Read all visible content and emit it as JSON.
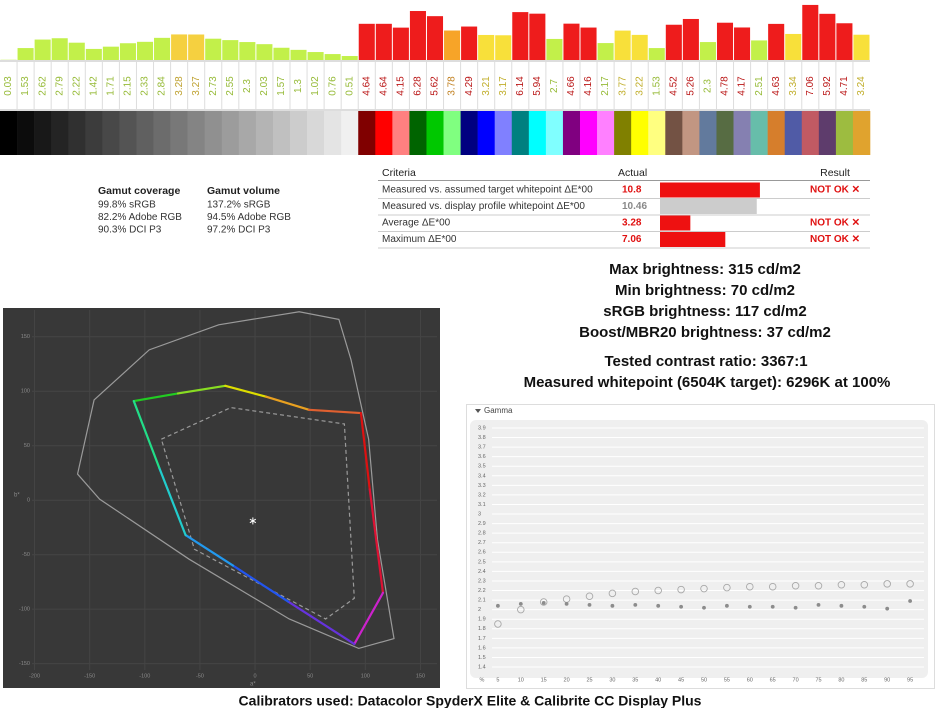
{
  "chart_data": [
    {
      "type": "bar",
      "values": [
        0.03,
        1.53,
        2.62,
        2.79,
        2.22,
        1.42,
        1.71,
        2.15,
        2.33,
        2.84,
        3.28,
        3.27,
        2.73,
        2.55,
        2.3,
        2.03,
        1.57,
        1.3,
        1.02,
        0.76,
        0.51,
        4.64,
        4.64,
        4.15,
        6.28,
        5.62,
        3.78,
        4.29,
        3.21,
        3.17,
        6.14,
        5.94,
        2.7,
        4.66,
        4.16,
        2.17,
        3.77,
        3.22,
        1.53,
        4.52,
        5.26,
        2.3,
        4.78,
        4.17,
        2.51,
        4.63,
        3.34,
        7.06,
        5.92,
        4.71,
        3.24
      ],
      "colors": [
        "#c2f04a",
        "#c2f04a",
        "#c2f04a",
        "#c2f04a",
        "#c2f04a",
        "#c2f04a",
        "#c2f04a",
        "#c2f04a",
        "#c2f04a",
        "#c2f04a",
        "#f5d040",
        "#f5d040",
        "#c2f04a",
        "#c2f04a",
        "#c2f04a",
        "#c2f04a",
        "#c2f04a",
        "#c2f04a",
        "#c2f04a",
        "#c2f04a",
        "#c2f04a",
        "#ee1c1c",
        "#ee1c1c",
        "#ee1c1c",
        "#ee1c1c",
        "#ee1c1c",
        "#f7a428",
        "#ee1c1c",
        "#f8e03a",
        "#f8e03a",
        "#ee1c1c",
        "#ee1c1c",
        "#c2f04a",
        "#ee1c1c",
        "#ee1c1c",
        "#c2f04a",
        "#f8e03a",
        "#f8e03a",
        "#c2f04a",
        "#ee1c1c",
        "#ee1c1c",
        "#c2f04a",
        "#ee1c1c",
        "#ee1c1c",
        "#c2f04a",
        "#ee1c1c",
        "#f8e03a",
        "#ee1c1c",
        "#ee1c1c",
        "#ee1c1c",
        "#f8e03a"
      ],
      "patch_colors": [
        "#000000",
        "#0c0c0c",
        "#181818",
        "#242424",
        "#303030",
        "#3c3c3c",
        "#484848",
        "#545454",
        "#606060",
        "#6c6c6c",
        "#787878",
        "#848484",
        "#909090",
        "#9c9c9c",
        "#a8a8a8",
        "#b4b4b4",
        "#c0c0c0",
        "#cccccc",
        "#d8d8d8",
        "#e4e4e4",
        "#f0f0f0",
        "#800000",
        "#ff0000",
        "#ff8080",
        "#006400",
        "#00c800",
        "#80ff80",
        "#000080",
        "#0000ff",
        "#8080ff",
        "#008080",
        "#00ffff",
        "#80ffff",
        "#800080",
        "#ff00ff",
        "#ff80ff",
        "#808000",
        "#ffff00",
        "#ffff80",
        "#735244",
        "#c29682",
        "#627a9d",
        "#576c43",
        "#8580b1",
        "#67bdaa",
        "#d67e2c",
        "#505ba6",
        "#c15a63",
        "#5e3c6c",
        "#9dbc40",
        "#e0a32e"
      ]
    },
    {
      "type": "gamut",
      "xlabel": "a*",
      "ylabel": "b*",
      "xlim": [
        -215,
        165
      ],
      "ylim": [
        -165,
        170
      ],
      "xticks": [
        -200,
        -150,
        -100,
        -50,
        0,
        50,
        100,
        150
      ],
      "yticks": [
        150,
        100,
        50,
        0,
        -50,
        -100,
        -150
      ],
      "grid": true,
      "series": [
        {
          "color": "#9a9a9a",
          "x": [
            -161,
            -146,
            -96,
            -33,
            40,
            76,
            87,
            103,
            111,
            123,
            126,
            94,
            31,
            -60,
            -141
          ],
          "values": [
            24,
            92,
            138,
            161,
            173,
            166,
            129,
            56,
            -36,
            -109,
            -127,
            -136,
            -109,
            -54,
            1
          ]
        },
        {
          "color": "#9a9a9a",
          "dashed": true,
          "x": [
            -85,
            -22,
            81,
            90,
            64,
            -55
          ],
          "values": [
            56,
            85,
            70,
            -90,
            -109,
            -45
          ]
        },
        {
          "colors": [
            "#22cc22",
            "#88dd22",
            "#dddd00",
            "#e8a020",
            "#e06030",
            "#dd1111",
            "#dd1133",
            "#cc22cc",
            "#6633dd",
            "#2255ee",
            "#2299ee",
            "#22cccc",
            "#22dd88"
          ],
          "x": [
            -110,
            -70,
            -27,
            10,
            49,
            96,
            104,
            116,
            90,
            30,
            -20,
            -63,
            -87
          ],
          "values": [
            91,
            98,
            105,
            95,
            83,
            80,
            10,
            -85,
            -132,
            -93,
            -60,
            -32,
            30
          ]
        }
      ],
      "white_point": {
        "x": -2,
        "value": -19,
        "color": "#ffffff"
      }
    },
    {
      "type": "scatter",
      "title": "Gamma",
      "xlabel": "%",
      "x": [
        5,
        10,
        15,
        20,
        25,
        30,
        35,
        40,
        45,
        50,
        55,
        60,
        65,
        70,
        75,
        80,
        85,
        90,
        95
      ],
      "xlim": [
        0,
        100
      ],
      "ylim": [
        1.4,
        3.9
      ],
      "xticks": [
        5,
        10,
        15,
        20,
        25,
        30,
        35,
        40,
        45,
        50,
        55,
        60,
        65,
        70,
        75,
        80,
        85,
        90,
        95
      ],
      "yticks": [
        1.4,
        1.5,
        1.6,
        1.7,
        1.8,
        1.9,
        2,
        2.1,
        2.2,
        2.3,
        2.4,
        2.5,
        2.6,
        2.7,
        2.8,
        2.9,
        3,
        3.1,
        3.2,
        3.3,
        3.4,
        3.5,
        3.6,
        3.7,
        3.8,
        3.9
      ],
      "grid": true,
      "series": [
        {
          "color": "#a8a8a8",
          "marker": "ring",
          "values": [
            1.85,
            2.0,
            2.08,
            2.11,
            2.14,
            2.17,
            2.19,
            2.2,
            2.21,
            2.22,
            2.23,
            2.24,
            2.24,
            2.25,
            2.25,
            2.26,
            2.26,
            2.27,
            2.27
          ]
        },
        {
          "color": "#8c8c8c",
          "marker": "dot",
          "values": [
            2.04,
            2.06,
            2.07,
            2.06,
            2.05,
            2.04,
            2.05,
            2.04,
            2.03,
            2.02,
            2.04,
            2.03,
            2.03,
            2.02,
            2.05,
            2.04,
            2.03,
            2.01,
            2.09
          ]
        }
      ]
    }
  ],
  "gamut_info": {
    "coverage_title": "Gamut coverage",
    "coverage": [
      "99.8% sRGB",
      "82.2% Adobe RGB",
      "90.3% DCI P3"
    ],
    "volume_title": "Gamut volume",
    "volume": [
      "137.2% sRGB",
      "94.5% Adobe RGB",
      "97.2% DCI P3"
    ]
  },
  "criteria_table": {
    "headers": [
      "Criteria",
      "Actual",
      "Result"
    ],
    "rows": [
      {
        "criteria": "Measured vs. assumed target whitepoint ΔE*00",
        "actual": 10.8,
        "result": "NOT OK ✕",
        "color": "#ee1111",
        "text_color": "#e01010"
      },
      {
        "criteria": "Measured vs. display profile whitepoint ΔE*00",
        "actual": 10.46,
        "color": "#cccccc",
        "text_color": "#888888"
      },
      {
        "criteria": "Average ΔE*00",
        "actual": 3.28,
        "result": "NOT OK ✕",
        "color": "#ee1111",
        "text_color": "#e01010"
      },
      {
        "criteria": "Maximum ΔE*00",
        "actual": 7.06,
        "result": "NOT OK ✕",
        "color": "#ee1111",
        "text_color": "#e01010"
      }
    ]
  },
  "brightness": [
    "Max brightness: 315 cd/m2",
    "Min brightness: 70 cd/m2",
    "sRGB brightness: 117 cd/m2",
    "Boost/MBR20 brightness: 37 cd/m2"
  ],
  "contrast": "Tested contrast ratio: 3367:1",
  "whitepoint": "Measured whitepoint (6504K target): 6296K at 100%",
  "footer": "Calibrators used: Datacolor SpyderX Elite & Calibrite CC Display Plus"
}
